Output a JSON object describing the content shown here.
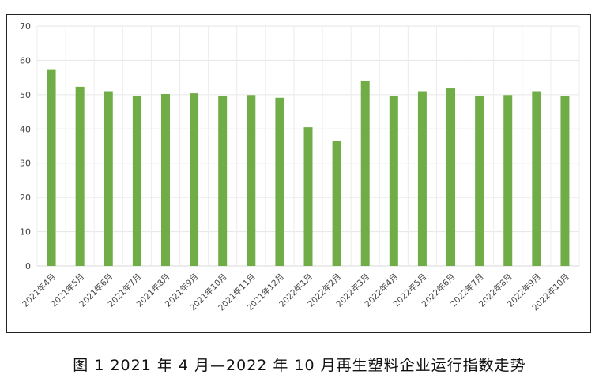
{
  "chart_data": {
    "type": "bar",
    "title": "",
    "xlabel": "",
    "ylabel": "",
    "ylim": [
      0,
      70
    ],
    "yticks": [
      0,
      10,
      20,
      30,
      40,
      50,
      60,
      70
    ],
    "grid": true,
    "legend": "none",
    "bar_color": "#70ad47",
    "categories": [
      "2021年4月",
      "2021年5月",
      "2021年6月",
      "2021年7月",
      "2021年8月",
      "2021年9月",
      "2021年10月",
      "2021年11月",
      "2021年12月",
      "2022年1月",
      "2022年2月",
      "2022年3月",
      "2022年4月",
      "2022年5月",
      "2022年6月",
      "2022年7月",
      "2022年8月",
      "2022年9月",
      "2022年10月"
    ],
    "values": [
      57.2,
      52.3,
      51.0,
      49.6,
      50.2,
      50.4,
      49.6,
      49.9,
      49.1,
      40.5,
      36.5,
      54.0,
      49.6,
      51.0,
      51.8,
      49.6,
      49.9,
      51.0,
      49.6
    ]
  },
  "caption": "图 1  2021 年 4 月—2022 年 10 月再生塑料企业运行指数走势"
}
